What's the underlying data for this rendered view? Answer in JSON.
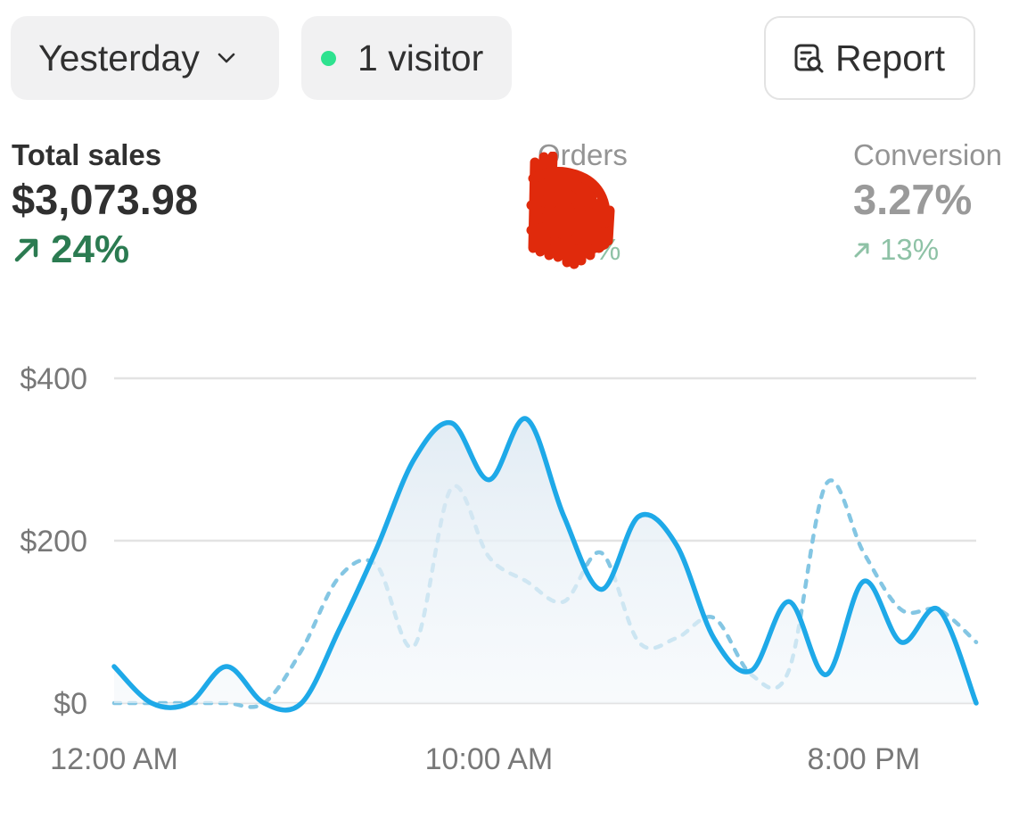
{
  "toolbar": {
    "date_label": "Yesterday",
    "visitors_label": "1 visitor",
    "report_label": "Report"
  },
  "metrics": {
    "sales": {
      "label": "Total sales",
      "value": "$3,073.98",
      "change": "24%"
    },
    "orders": {
      "label": "Orders",
      "change": "%"
    },
    "conversion": {
      "label": "Conversion",
      "value": "3.27%",
      "change": "13%"
    }
  },
  "colors": {
    "current_series": "#1ea9e8",
    "comparison_series": "#84c6e3",
    "positive_change": "#2b7b51",
    "live_dot": "#2ee28f"
  },
  "chart_data": {
    "type": "line",
    "title": "",
    "xlabel": "",
    "ylabel": "",
    "ylim": [
      0,
      400
    ],
    "y_ticks": [
      "$400",
      "$200",
      "$0"
    ],
    "y_tick_values": [
      400,
      200,
      0
    ],
    "x_ticks": [
      "12:00 AM",
      "10:00 AM",
      "8:00 PM"
    ],
    "x_tick_hours": [
      0,
      10,
      20
    ],
    "x_range_hours": [
      0,
      23
    ],
    "grid": true,
    "legend": "none",
    "series": [
      {
        "style": "solid",
        "x": [
          0,
          1,
          2,
          3,
          4,
          5,
          6,
          7,
          8,
          9,
          10,
          11,
          12,
          13,
          14,
          15,
          16,
          17,
          18,
          19,
          20,
          21,
          22,
          23
        ],
        "y": [
          45,
          0,
          0,
          45,
          0,
          0,
          90,
          190,
          300,
          345,
          275,
          350,
          230,
          140,
          230,
          195,
          80,
          40,
          125,
          35,
          150,
          75,
          115,
          0
        ]
      },
      {
        "style": "dashed",
        "x": [
          0,
          1,
          2,
          3,
          4,
          5,
          6,
          7,
          8,
          9,
          10,
          11,
          12,
          13,
          14,
          15,
          16,
          17,
          18,
          19,
          20,
          21,
          22,
          23
        ],
        "y": [
          0,
          0,
          0,
          0,
          0,
          65,
          155,
          170,
          70,
          265,
          180,
          150,
          125,
          185,
          75,
          80,
          105,
          35,
          40,
          270,
          185,
          115,
          115,
          75
        ]
      }
    ]
  }
}
